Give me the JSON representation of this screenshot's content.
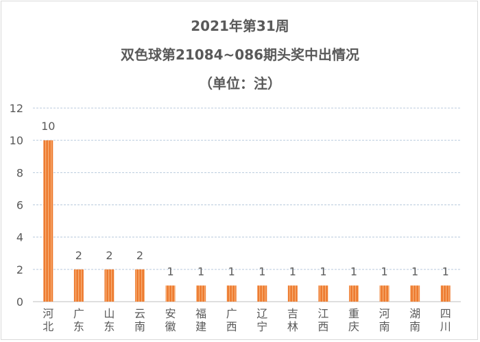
{
  "chart_data": {
    "type": "bar",
    "title_lines": [
      "2021年第31周",
      "双色球第21084~086期头奖中出情况",
      "（单位：注）"
    ],
    "categories": [
      "河北",
      "广东",
      "山东",
      "云南",
      "安徽",
      "福建",
      "广西",
      "辽宁",
      "吉林",
      "江西",
      "重庆",
      "河南",
      "湖南",
      "四川"
    ],
    "values": [
      10,
      2,
      2,
      2,
      1,
      1,
      1,
      1,
      1,
      1,
      1,
      1,
      1,
      1
    ],
    "ylim": [
      0,
      12
    ],
    "yticks": [
      0,
      2,
      4,
      6,
      8,
      10,
      12
    ],
    "grid": true,
    "legend": "none",
    "colors": {
      "bar": "#ee7c31",
      "bar_stripe": "#f6b27a",
      "grid": "#b8c9dc",
      "axis_text": "#595959",
      "title": "#595959"
    }
  }
}
